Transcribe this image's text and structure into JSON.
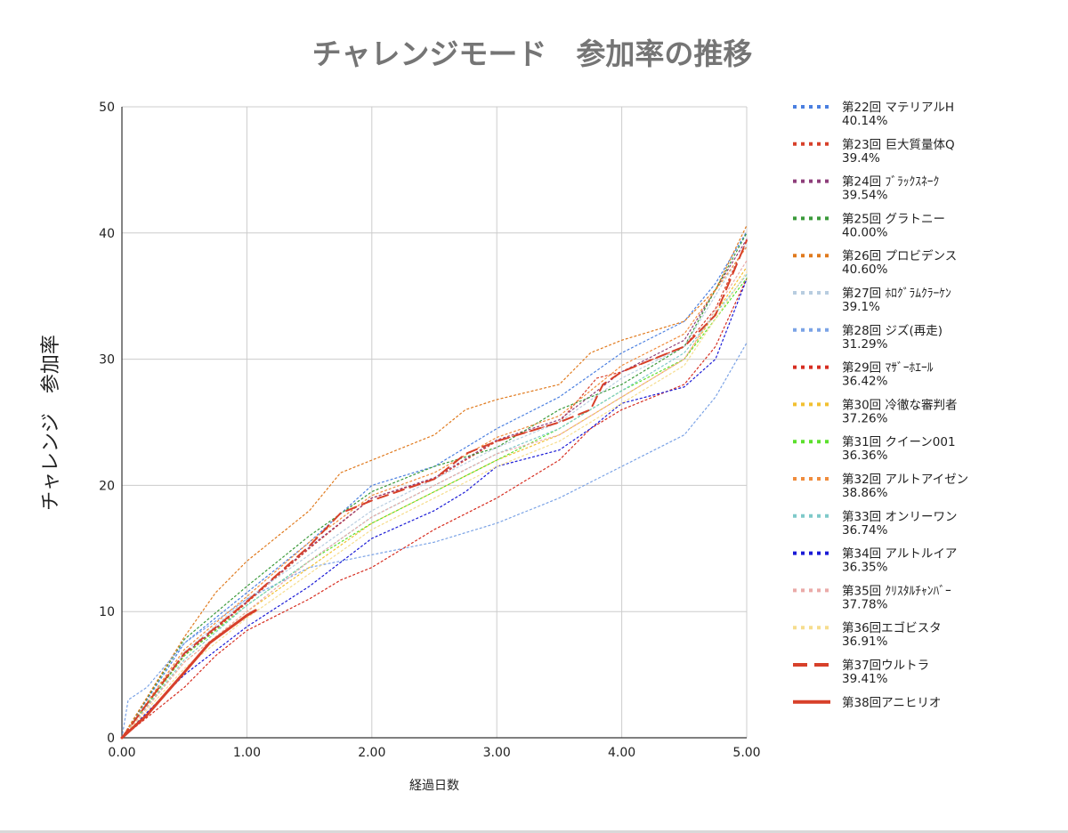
{
  "chart_data": {
    "type": "line",
    "title": "チャレンジモード　参加率の推移",
    "xlabel": "経過日数",
    "ylabel": "チャレンジ　参加率",
    "xlim": [
      0,
      5
    ],
    "ylim": [
      0,
      50
    ],
    "x_ticks": [
      "0.00",
      "1.00",
      "2.00",
      "3.00",
      "4.00",
      "5.00"
    ],
    "y_ticks": [
      "0",
      "10",
      "20",
      "30",
      "40",
      "50"
    ],
    "grid": true,
    "legend_position": "right",
    "series": [
      {
        "name": "第22回 マテリアルH",
        "sub": "40.14%",
        "color": "#4a7fe0",
        "style": "dotted",
        "points": [
          [
            0,
            0
          ],
          [
            0.5,
            7.5
          ],
          [
            1,
            11.5
          ],
          [
            1.5,
            15.5
          ],
          [
            2,
            20
          ],
          [
            2.5,
            21.5
          ],
          [
            3,
            24.5
          ],
          [
            3.5,
            27
          ],
          [
            4,
            30.5
          ],
          [
            4.5,
            33
          ],
          [
            4.75,
            36
          ],
          [
            5,
            40.1
          ]
        ]
      },
      {
        "name": "第23回 巨大質量体Q",
        "sub": "39.4%",
        "color": "#d7402a",
        "style": "dotted",
        "points": [
          [
            0,
            0
          ],
          [
            0.5,
            6.5
          ],
          [
            1,
            10.7
          ],
          [
            1.5,
            15
          ],
          [
            2,
            19
          ],
          [
            2.5,
            20.5
          ],
          [
            3,
            23.5
          ],
          [
            3.5,
            25
          ],
          [
            3.8,
            28.5
          ],
          [
            4,
            29
          ],
          [
            4.5,
            31
          ],
          [
            4.75,
            34
          ],
          [
            5,
            39.4
          ]
        ]
      },
      {
        "name": "第24回 ﾌﾞﾗｯｸｽﾈｰｸ",
        "sub": "39.54%",
        "color": "#8e3e7a",
        "style": "dotted",
        "points": [
          [
            0,
            0
          ],
          [
            0.5,
            6.6
          ],
          [
            1,
            10.8
          ],
          [
            1.5,
            15.1
          ],
          [
            2,
            19
          ],
          [
            2.5,
            20.6
          ],
          [
            3,
            23.6
          ],
          [
            3.5,
            25.2
          ],
          [
            4,
            29
          ],
          [
            4.5,
            31.5
          ],
          [
            5,
            39.5
          ]
        ]
      },
      {
        "name": "第25回 グラトニー",
        "sub": "40.00%",
        "color": "#3a9a3a",
        "style": "dotted",
        "points": [
          [
            0,
            0
          ],
          [
            0.5,
            7.8
          ],
          [
            1,
            12
          ],
          [
            1.5,
            16
          ],
          [
            2,
            19.5
          ],
          [
            2.5,
            21.5
          ],
          [
            3,
            23
          ],
          [
            3.5,
            26
          ],
          [
            4,
            28
          ],
          [
            4.5,
            31
          ],
          [
            5,
            40
          ]
        ]
      },
      {
        "name": "第26回 プロビデンス",
        "sub": "40.60%",
        "color": "#e07a1e",
        "style": "dotted",
        "points": [
          [
            0,
            0
          ],
          [
            0.5,
            8
          ],
          [
            0.75,
            11.5
          ],
          [
            1,
            14
          ],
          [
            1.5,
            18
          ],
          [
            1.75,
            21
          ],
          [
            2,
            22
          ],
          [
            2.5,
            24
          ],
          [
            2.75,
            26
          ],
          [
            3,
            26.8
          ],
          [
            3.5,
            28
          ],
          [
            3.75,
            30.5
          ],
          [
            4,
            31.5
          ],
          [
            4.5,
            33
          ],
          [
            4.75,
            35.5
          ],
          [
            5,
            40.6
          ]
        ]
      },
      {
        "name": "第27回 ﾎﾛｸﾞﾗﾑｸﾗｰｹﾝ",
        "sub": "39.1%",
        "color": "#b8cde0",
        "style": "dotted",
        "points": [
          [
            0,
            0
          ],
          [
            0.5,
            6.8
          ],
          [
            1,
            11
          ],
          [
            1.5,
            14.5
          ],
          [
            2,
            18
          ],
          [
            2.5,
            20.5
          ],
          [
            3,
            23
          ],
          [
            3.5,
            25
          ],
          [
            4,
            28.5
          ],
          [
            4.5,
            31
          ],
          [
            5,
            39.1
          ]
        ]
      },
      {
        "name": "第28回 ジズ(再走)",
        "sub": "31.29%",
        "color": "#7ba3e6",
        "style": "dotted",
        "points": [
          [
            0,
            0
          ],
          [
            0.05,
            3
          ],
          [
            0.2,
            4
          ],
          [
            0.5,
            7.5
          ],
          [
            1,
            11
          ],
          [
            1.5,
            13.5
          ],
          [
            2,
            14.5
          ],
          [
            2.5,
            15.5
          ],
          [
            3,
            17
          ],
          [
            3.5,
            19
          ],
          [
            4,
            21.5
          ],
          [
            4.5,
            24
          ],
          [
            4.75,
            27
          ],
          [
            5,
            31.3
          ]
        ]
      },
      {
        "name": "第29回 ﾏｻﾞｰﾎｴｰﾙ",
        "sub": "36.42%",
        "color": "#d62d20",
        "style": "dotted",
        "points": [
          [
            0,
            0
          ],
          [
            0.5,
            4
          ],
          [
            0.75,
            6.5
          ],
          [
            1,
            8.5
          ],
          [
            1.5,
            11
          ],
          [
            1.75,
            12.5
          ],
          [
            2,
            13.5
          ],
          [
            2.5,
            16.5
          ],
          [
            3,
            19
          ],
          [
            3.5,
            22
          ],
          [
            3.75,
            24.5
          ],
          [
            4,
            26
          ],
          [
            4.5,
            28
          ],
          [
            4.75,
            31
          ],
          [
            5,
            36.4
          ]
        ]
      },
      {
        "name": "第30回 冷徹な審判者",
        "sub": "37.26%",
        "color": "#f2c030",
        "style": "dotted",
        "points": [
          [
            0,
            0
          ],
          [
            0.5,
            6
          ],
          [
            1,
            10
          ],
          [
            1.5,
            13.5
          ],
          [
            2,
            17
          ],
          [
            2.5,
            19.5
          ],
          [
            3,
            22
          ],
          [
            3.5,
            24
          ],
          [
            4,
            27
          ],
          [
            4.5,
            30
          ],
          [
            5,
            37.3
          ]
        ]
      },
      {
        "name": "第31回 クイーン001",
        "sub": "36.36%",
        "color": "#5ce02d",
        "style": "dotted",
        "points": [
          [
            0,
            0
          ],
          [
            0.5,
            6.5
          ],
          [
            1,
            10.5
          ],
          [
            1.5,
            14
          ],
          [
            2,
            17
          ],
          [
            2.5,
            19.5
          ],
          [
            3,
            22
          ],
          [
            3.5,
            24.5
          ],
          [
            4,
            27.5
          ],
          [
            4.5,
            30
          ],
          [
            5,
            36.4
          ]
        ]
      },
      {
        "name": "第32回 アルトアイゼン",
        "sub": "38.86%",
        "color": "#f08c3c",
        "style": "dotted",
        "points": [
          [
            0,
            0
          ],
          [
            0.5,
            7
          ],
          [
            1,
            11.2
          ],
          [
            1.5,
            15.5
          ],
          [
            2,
            19.2
          ],
          [
            2.5,
            21
          ],
          [
            3,
            23.8
          ],
          [
            3.5,
            25.5
          ],
          [
            4,
            29.5
          ],
          [
            4.5,
            32
          ],
          [
            5,
            38.9
          ]
        ]
      },
      {
        "name": "第33回 オンリーワン",
        "sub": "36.74%",
        "color": "#7ec9c9",
        "style": "dotted",
        "points": [
          [
            0,
            0
          ],
          [
            0.5,
            6.2
          ],
          [
            1,
            10.5
          ],
          [
            1.5,
            14
          ],
          [
            2,
            17.5
          ],
          [
            2.5,
            20
          ],
          [
            3,
            22.5
          ],
          [
            3.5,
            24.5
          ],
          [
            4,
            27.5
          ],
          [
            4.5,
            30.5
          ],
          [
            5,
            36.7
          ]
        ]
      },
      {
        "name": "第34回 アルトルイア",
        "sub": "36.35%",
        "color": "#1a1ad6",
        "style": "dotted",
        "points": [
          [
            0,
            0
          ],
          [
            0.5,
            5
          ],
          [
            1,
            8.8
          ],
          [
            1.5,
            12
          ],
          [
            2,
            15.8
          ],
          [
            2.5,
            18
          ],
          [
            2.75,
            19.5
          ],
          [
            3,
            21.5
          ],
          [
            3.5,
            22.8
          ],
          [
            3.75,
            24.5
          ],
          [
            4,
            26.5
          ],
          [
            4.5,
            27.8
          ],
          [
            4.75,
            30
          ],
          [
            5,
            36.35
          ]
        ]
      },
      {
        "name": "第35回 ｸﾘｽﾀﾙﾁｬﾝﾊﾞｰ",
        "sub": "37.78%",
        "color": "#eaaaa8",
        "style": "dotted",
        "points": [
          [
            0,
            0
          ],
          [
            0.5,
            6
          ],
          [
            1,
            10
          ],
          [
            1.5,
            14
          ],
          [
            2,
            17.5
          ],
          [
            2.5,
            20
          ],
          [
            3,
            22.5
          ],
          [
            3.5,
            24
          ],
          [
            4,
            27
          ],
          [
            4.5,
            30
          ],
          [
            5,
            37.8
          ]
        ]
      },
      {
        "name": "第36回エゴビスタ",
        "sub": "36.91%",
        "color": "#f6dd8e",
        "style": "dotted",
        "points": [
          [
            0,
            0
          ],
          [
            0.5,
            5.5
          ],
          [
            1,
            9.5
          ],
          [
            1.5,
            13
          ],
          [
            2,
            16.5
          ],
          [
            2.5,
            19
          ],
          [
            3,
            21.5
          ],
          [
            3.5,
            23.5
          ],
          [
            4,
            26.5
          ],
          [
            4.5,
            29.5
          ],
          [
            5,
            36.9
          ]
        ]
      },
      {
        "name": "第37回ウルトラ",
        "sub": "39.41%",
        "color": "#d7402a",
        "style": "dashed",
        "points": [
          [
            0,
            0
          ],
          [
            0.5,
            6.7
          ],
          [
            1,
            10.8
          ],
          [
            1.5,
            15.2
          ],
          [
            1.75,
            17.8
          ],
          [
            2,
            18.8
          ],
          [
            2.5,
            20.5
          ],
          [
            2.75,
            22.5
          ],
          [
            3,
            23.5
          ],
          [
            3.5,
            25
          ],
          [
            3.75,
            26
          ],
          [
            3.85,
            28
          ],
          [
            4,
            29
          ],
          [
            4.5,
            31
          ],
          [
            4.75,
            33.5
          ],
          [
            5,
            39.4
          ]
        ]
      },
      {
        "name": "第38回アニヒリオ",
        "sub": "",
        "color": "#d7402a",
        "style": "solid",
        "points": [
          [
            0,
            0
          ],
          [
            0.2,
            1.8
          ],
          [
            0.5,
            5.2
          ],
          [
            0.7,
            7.5
          ],
          [
            1,
            9.7
          ],
          [
            1.07,
            10.1
          ]
        ]
      }
    ]
  }
}
